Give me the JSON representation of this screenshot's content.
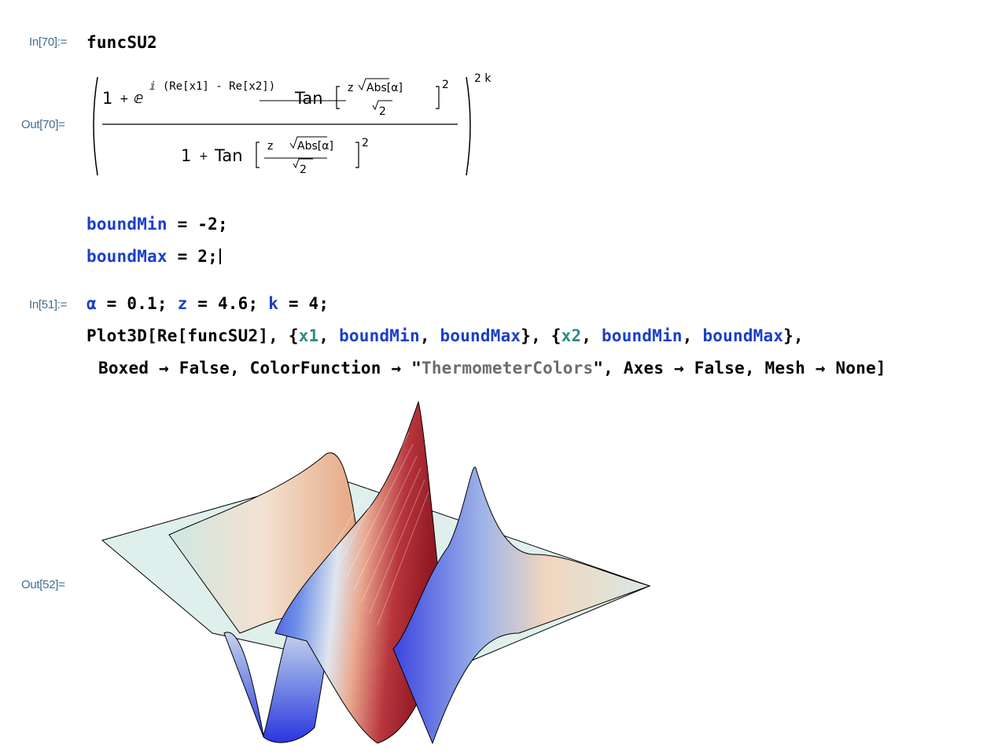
{
  "cell1": {
    "in_label": "In[70]:=",
    "in_text": "funcSU2",
    "out_label": "Out[70]=",
    "formula": {
      "one": "1",
      "plus": "+",
      "exp_base": "ⅇ",
      "exp_exponent": "ⅈ (Re[x1] - Re[x2])",
      "tan": "Tan",
      "z": "z",
      "abs": "Abs[α]",
      "sqrt_num": "2",
      "power_inner": "2",
      "power_outer": "2 k"
    }
  },
  "cell2": {
    "line1": {
      "var": "boundMin",
      "rest": " = -2;"
    },
    "line2": {
      "var": "boundMax",
      "rest": " = 2;"
    }
  },
  "cell3": {
    "in_label": "In[51]:=",
    "line1": {
      "v1": "α",
      "t1": " = 0.1;  ",
      "v2": "z",
      "t2": " = 4.6; ",
      "v3": "k",
      "t3": " = 4;"
    },
    "line2": {
      "t1": "Plot3D[Re[funcSU2], {",
      "loc1": "x1",
      "t2": ", ",
      "var1": "boundMin",
      "t3": ", ",
      "var2": "boundMax",
      "t4": "}, {",
      "loc2": "x2",
      "t5": ", ",
      "var3": "boundMin",
      "t6": ", ",
      "var4": "boundMax",
      "t7": "},"
    },
    "line3": {
      "t1": "Boxed → False, ColorFunction → \"",
      "str": "ThermometerColors",
      "t2": "\", Axes → False, Mesh → None]"
    },
    "out_label": "Out[52]="
  },
  "plot": {
    "type": "surface3d",
    "color_function": "ThermometerColors",
    "colors": {
      "blue": "#2f3fe0",
      "red": "#9a1d2a",
      "pale": "#dff0ec"
    }
  }
}
